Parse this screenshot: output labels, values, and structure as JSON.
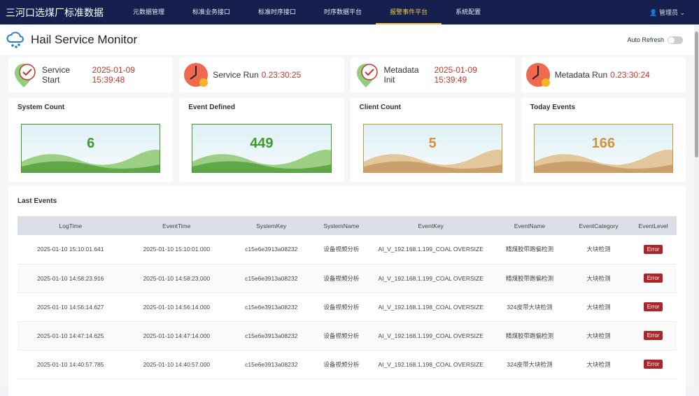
{
  "brand": "三河口选煤厂标准数据",
  "nav": [
    "元数据管理",
    "标准业务接口",
    "标准时序接口",
    "时序数据平台",
    "报警事件平台",
    "系统配置"
  ],
  "active_nav": 4,
  "user": "管理员",
  "page_title": "Hail Service Monitor",
  "auto_refresh": {
    "label": "Auto Refresh",
    "on": false
  },
  "status": [
    {
      "label": "Service Start",
      "value": "2025-01-09 15:39:48",
      "icon": "map-pin-check-icon"
    },
    {
      "label": "Service Run",
      "value": "0.23:30:25",
      "icon": "clock-icon"
    },
    {
      "label": "Metadata Init",
      "value": "2025-01-09 15:39:49",
      "icon": "map-pin-check-icon"
    },
    {
      "label": "Metadata Run",
      "value": "0.23:30:24",
      "icon": "clock-icon"
    }
  ],
  "counts": [
    {
      "label": "System Count",
      "value": "6",
      "color": "#3f9a2a"
    },
    {
      "label": "Event Defined",
      "value": "449",
      "color": "#3f9a2a"
    },
    {
      "label": "Client Count",
      "value": "5",
      "color": "#d6923a"
    },
    {
      "label": "Today Events",
      "value": "166",
      "color": "#d6923a"
    }
  ],
  "events": {
    "title": "Last Events",
    "columns": [
      "LogTime",
      "EventTime",
      "SystemKey",
      "SystemName",
      "EventKey",
      "EventName",
      "EventCategory",
      "EventLevel"
    ],
    "rows": [
      [
        "2025-01-10 15:10:01.641",
        "2025-01-10 15:10:01.000",
        "c15e6e3913a08232",
        "设备视频分析",
        "AI_V_192.168.1.199_COAL OVERSIZE",
        "精煤胶带跑偏检测",
        "大块检测",
        "Error"
      ],
      [
        "2025-01-10 14:58:23.916",
        "2025-01-10 14:58:23.000",
        "c15e6e3913a08232",
        "设备视频分析",
        "AI_V_192.168.1.199_COAL OVERSIZE",
        "精煤胶带跑偏检测",
        "大块检测",
        "Error"
      ],
      [
        "2025-01-10 14:56:14.627",
        "2025-01-10 14:56:14.000",
        "c15e6e3913a08232",
        "设备视频分析",
        "AI_V_192.168.1.198_COAL OVERSIZE",
        "324皮带大块检测",
        "大块检测",
        "Error"
      ],
      [
        "2025-01-10 14:47:14.625",
        "2025-01-10 14:47:14.000",
        "c15e6e3913a08232",
        "设备视频分析",
        "AI_V_192.168.1.199_COAL OVERSIZE",
        "精煤胶带跑偏检测",
        "大块检测",
        "Error"
      ],
      [
        "2025-01-10 14:40:57.785",
        "2025-01-10 14:40:57.000",
        "c15e6e3913a08232",
        "设备视频分析",
        "AI_V_192.168.1.198_COAL OVERSIZE",
        "324皮带大块检测",
        "大块检测",
        "Error"
      ]
    ]
  }
}
